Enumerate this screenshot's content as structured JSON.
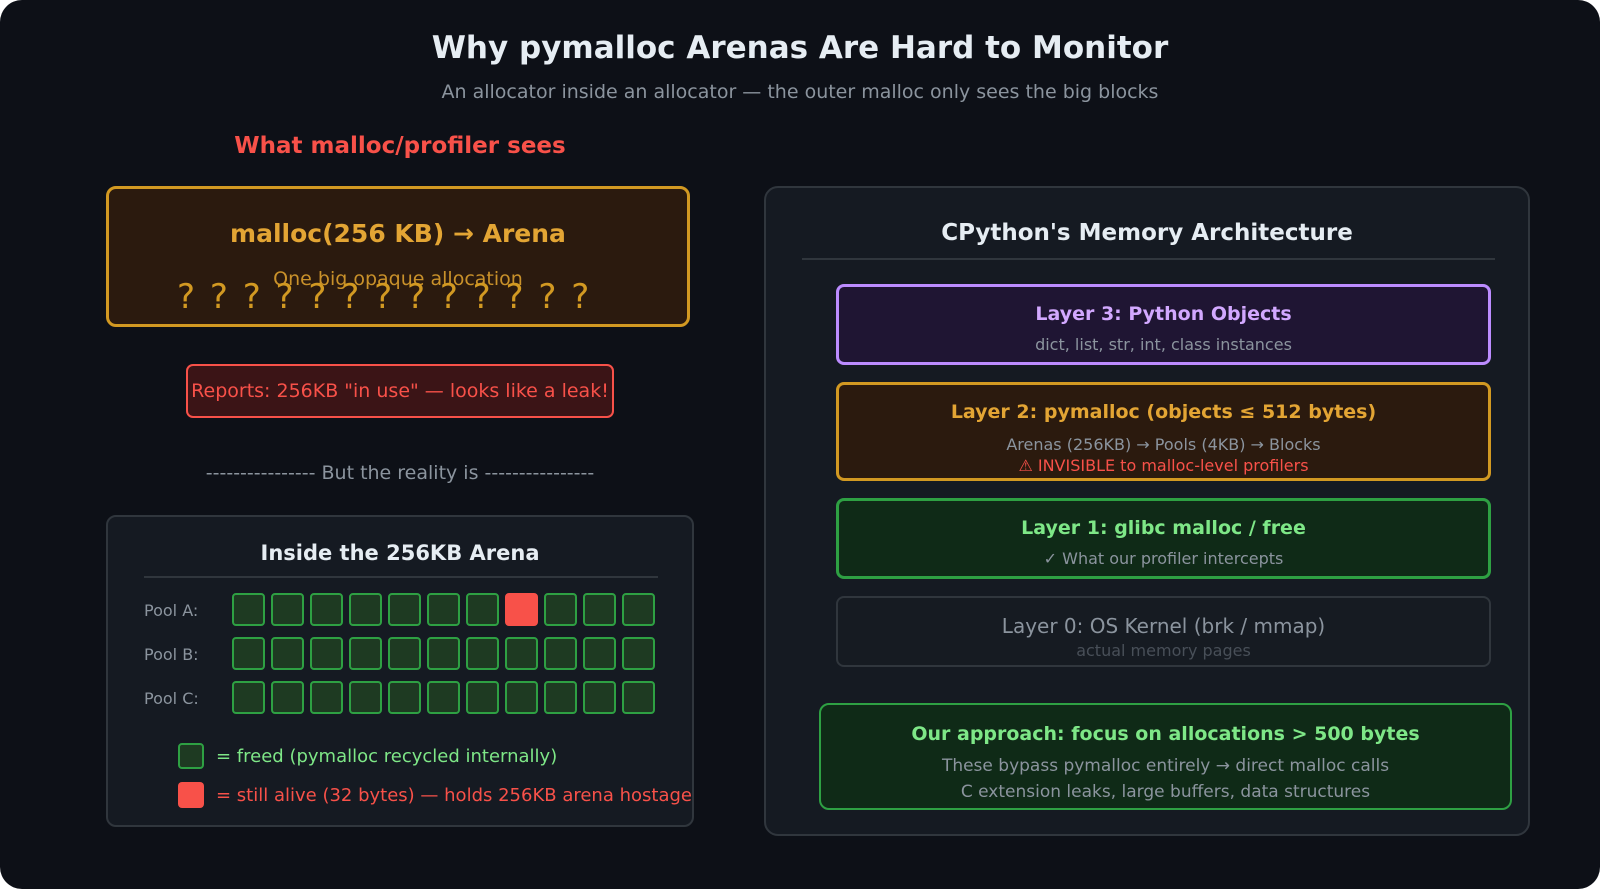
{
  "header": {
    "title": "Why pymalloc Arenas Are Hard to Monitor",
    "subtitle": "An allocator inside an allocator — the outer malloc only sees the big blocks"
  },
  "left": {
    "heading": "What malloc/profiler sees",
    "arena_box": {
      "title": "malloc(256 KB) → Arena",
      "subtitle": "One big opaque allocation",
      "question_marks": "? ? ? ? ? ? ? ? ? ? ? ? ?"
    },
    "report": "Reports: 256KB \"in use\" — looks like a leak!",
    "reality": "---------------- But the reality is ----------------",
    "inside": {
      "title": "Inside the 256KB Arena",
      "pools": [
        {
          "label": "Pool A:",
          "blocks": [
            "freed",
            "freed",
            "freed",
            "freed",
            "freed",
            "freed",
            "freed",
            "alive",
            "freed",
            "freed",
            "freed"
          ]
        },
        {
          "label": "Pool B:",
          "blocks": [
            "freed",
            "freed",
            "freed",
            "freed",
            "freed",
            "freed",
            "freed",
            "freed",
            "freed",
            "freed",
            "freed"
          ]
        },
        {
          "label": "Pool C:",
          "blocks": [
            "freed",
            "freed",
            "freed",
            "freed",
            "freed",
            "freed",
            "freed",
            "freed",
            "freed",
            "freed",
            "freed"
          ]
        }
      ],
      "legend": {
        "freed": "= freed (pymalloc recycled internally)",
        "alive": "= still alive (32 bytes) — holds 256KB arena hostage"
      }
    }
  },
  "right": {
    "title": "CPython's Memory Architecture",
    "layers": {
      "layer3": {
        "title": "Layer 3: Python Objects",
        "sub": "dict, list, str, int, class instances"
      },
      "layer2": {
        "title": "Layer 2: pymalloc (objects ≤ 512 bytes)",
        "sub": "Arenas (256KB) → Pools (4KB) → Blocks",
        "warning": "⚠ INVISIBLE to malloc-level profilers"
      },
      "layer1": {
        "title": "Layer 1: glibc malloc / free",
        "sub": "✓ What our profiler intercepts"
      },
      "layer0": {
        "title": "Layer 0: OS Kernel (brk / mmap)",
        "sub": "actual memory pages"
      }
    },
    "approach": {
      "title": "Our approach: focus on allocations > 500 bytes",
      "line1": "These bypass pymalloc entirely → direct malloc calls",
      "line2": "C extension leaks, large buffers, data structures"
    }
  },
  "colors": {
    "background": "#0d1017",
    "danger": "#f85149",
    "warning": "#d29922",
    "success": "#2ea043",
    "purple": "#bc8cff"
  }
}
